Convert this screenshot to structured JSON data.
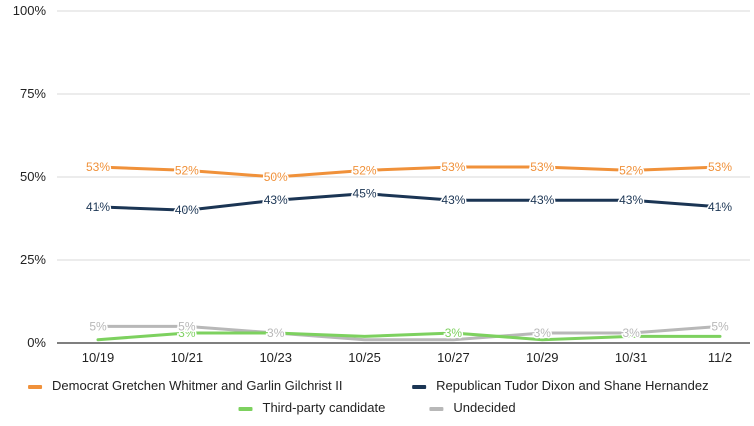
{
  "chart_data": {
    "type": "line",
    "categories": [
      "10/19",
      "10/21",
      "10/23",
      "10/25",
      "10/27",
      "10/29",
      "10/31",
      "11/2"
    ],
    "ylim": [
      0,
      100
    ],
    "yticks": [
      {
        "value": 0,
        "label": "0%"
      },
      {
        "value": 25,
        "label": "25%"
      },
      {
        "value": 50,
        "label": "50%"
      },
      {
        "value": 75,
        "label": "75%"
      },
      {
        "value": 100,
        "label": "100%"
      }
    ],
    "grid": true,
    "legend_position": "bottom",
    "series": [
      {
        "name": "Democrat Gretchen Whitmer and Garlin Gilchrist II",
        "color": "#f0913a",
        "values": [
          53,
          52,
          50,
          52,
          53,
          53,
          52,
          53
        ],
        "labels": [
          "53%",
          "52%",
          "50%",
          "52%",
          "53%",
          "53%",
          "52%",
          "53%"
        ]
      },
      {
        "name": "Republican Tudor Dixon and Shane Hernandez",
        "color": "#1b3554",
        "values": [
          41,
          40,
          43,
          45,
          43,
          43,
          43,
          41
        ],
        "labels": [
          "41%",
          "40%",
          "43%",
          "45%",
          "43%",
          "43%",
          "43%",
          "41%"
        ]
      },
      {
        "name": "Third-party candidate",
        "color": "#7dd15f",
        "values": [
          1,
          3,
          3,
          2,
          3,
          1,
          2,
          2
        ],
        "labels": [
          "",
          "3%",
          "",
          "",
          "3%",
          "",
          "",
          ""
        ]
      },
      {
        "name": "Undecided",
        "color": "#b8b8b8",
        "values": [
          5,
          5,
          3,
          1,
          1,
          3,
          3,
          5
        ],
        "labels": [
          "5%",
          "5%",
          "3%",
          "",
          "",
          "3%",
          "3%",
          "5%"
        ]
      }
    ]
  }
}
